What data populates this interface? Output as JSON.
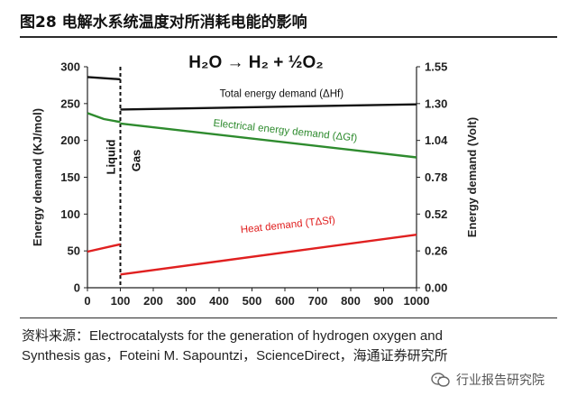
{
  "figure": {
    "title": "图28 电解水系统温度对所消耗电能的影响"
  },
  "source": {
    "line1": "资料来源：Electrocatalysts for the generation of hydrogen oxygen and",
    "line2": "Synthesis gas，Foteini M. Sapountzi，ScienceDirect，海通证券研究所"
  },
  "watermark": {
    "text": "行业报告研究院",
    "icon": "wechat-icon"
  },
  "chart_data": {
    "type": "line",
    "equation": "H₂O → H₂ + ½O₂",
    "xlabel": "",
    "ylabel": "Energy demand (KJ/mol)",
    "ylabel_right": "Energy demand (Volt)",
    "xlim": [
      0,
      1000
    ],
    "ylim": [
      0,
      300
    ],
    "ylim_right": [
      0,
      1.55
    ],
    "x_ticks": [
      0,
      100,
      200,
      300,
      400,
      500,
      600,
      700,
      800,
      900,
      1000
    ],
    "y_ticks": [
      0,
      50,
      100,
      150,
      200,
      250,
      300
    ],
    "y_ticks_right": [
      "0.00",
      "0.26",
      "0.52",
      "0.78",
      "1.04",
      "1.30",
      "1.55"
    ],
    "phase_boundary_x": 100,
    "phase_labels": [
      "Liquid",
      "Gas"
    ],
    "grid": false,
    "series": [
      {
        "name": "Total energy demand (ΔHf)",
        "color": "#111111",
        "segments": [
          {
            "x": [
              0,
              100
            ],
            "y": [
              286,
              283
            ]
          },
          {
            "x": [
              100,
              1000
            ],
            "y": [
              242,
              249
            ]
          }
        ]
      },
      {
        "name": "Electrical energy demand (ΔGf)",
        "color": "#2e8b2e",
        "segments": [
          {
            "x": [
              0,
              50,
              100
            ],
            "y": [
              237,
              229,
              225
            ]
          },
          {
            "x": [
              100,
              1000
            ],
            "y": [
              223,
              177
            ]
          }
        ]
      },
      {
        "name": "Heat demand (TΔSf)",
        "color": "#e02020",
        "segments": [
          {
            "x": [
              0,
              100
            ],
            "y": [
              49,
              59
            ]
          },
          {
            "x": [
              100,
              1000
            ],
            "y": [
              18,
              72
            ]
          }
        ]
      }
    ]
  }
}
